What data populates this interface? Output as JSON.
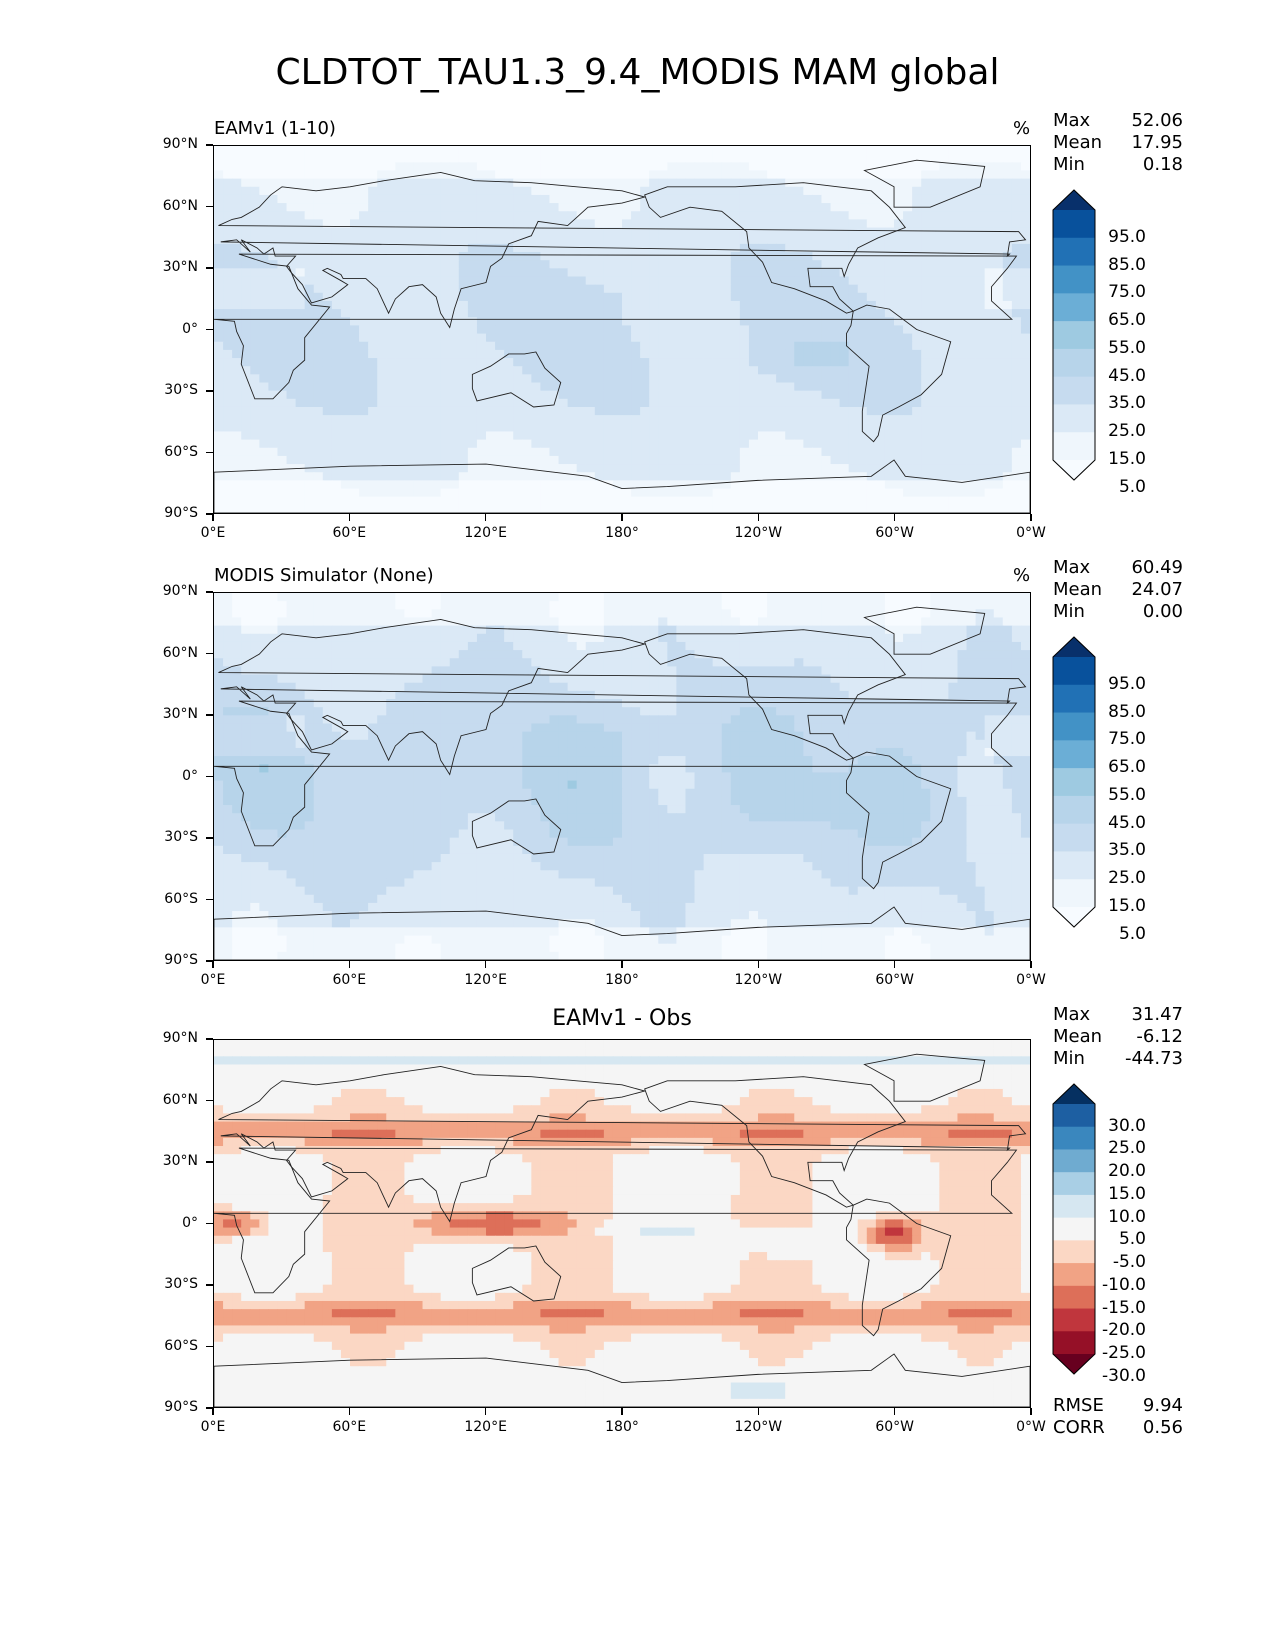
{
  "title": "CLDTOT_TAU1.3_9.4_MODIS MAM global",
  "axes": {
    "lat_ticks": [
      "90°N",
      "60°N",
      "30°N",
      "0°",
      "30°S",
      "60°S",
      "90°S"
    ],
    "lon_ticks": [
      "0°E",
      "60°E",
      "120°E",
      "180°",
      "120°W",
      "60°W",
      "0°W"
    ]
  },
  "panels": [
    {
      "label": "EAMv1 (1-10)",
      "label_align": "left",
      "units": "%",
      "stats": [
        {
          "name": "Max",
          "value": "52.06"
        },
        {
          "name": "Mean",
          "value": "17.95"
        },
        {
          "name": "Min",
          "value": "0.18"
        }
      ],
      "colorbar": {
        "labels": [
          "95.0",
          "85.0",
          "75.0",
          "65.0",
          "55.0",
          "45.0",
          "35.0",
          "25.0",
          "15.0",
          "5.0"
        ],
        "colors": [
          "#08306b",
          "#08519c",
          "#2171b5",
          "#4292c6",
          "#6baed6",
          "#9ecae1",
          "#b7d4ea",
          "#c6dbef",
          "#dbe9f6",
          "#eff6fc",
          "#f7fbff"
        ]
      },
      "palette": "blues"
    },
    {
      "label": "MODIS Simulator (None)",
      "label_align": "left",
      "units": "%",
      "stats": [
        {
          "name": "Max",
          "value": "60.49"
        },
        {
          "name": "Mean",
          "value": "24.07"
        },
        {
          "name": "Min",
          "value": "0.00"
        }
      ],
      "colorbar": {
        "labels": [
          "95.0",
          "85.0",
          "75.0",
          "65.0",
          "55.0",
          "45.0",
          "35.0",
          "25.0",
          "15.0",
          "5.0"
        ],
        "colors": [
          "#08306b",
          "#08519c",
          "#2171b5",
          "#4292c6",
          "#6baed6",
          "#9ecae1",
          "#b7d4ea",
          "#c6dbef",
          "#dbe9f6",
          "#eff6fc",
          "#f7fbff"
        ]
      },
      "palette": "blues"
    },
    {
      "label": "EAMv1 - Obs",
      "label_align": "center",
      "units": "",
      "stats": [
        {
          "name": "Max",
          "value": "31.47"
        },
        {
          "name": "Mean",
          "value": "-6.12"
        },
        {
          "name": "Min",
          "value": "-44.73"
        }
      ],
      "colorbar": {
        "labels": [
          "30.0",
          "25.0",
          "20.0",
          "15.0",
          "10.0",
          "5.0",
          "-5.0",
          "-10.0",
          "-15.0",
          "-20.0",
          "-25.0",
          "-30.0"
        ],
        "colors": [
          "#053061",
          "#1d5fa2",
          "#3a87be",
          "#6fabd0",
          "#a9cfe5",
          "#d6e7f1",
          "#f5f5f5",
          "#fbd7c4",
          "#f1a385",
          "#dd6f59",
          "#c0363d",
          "#951027",
          "#67001f"
        ]
      },
      "diag": [
        {
          "name": "RMSE",
          "value": "9.94"
        },
        {
          "name": "CORR",
          "value": "0.56"
        }
      ],
      "palette": "diff"
    }
  ],
  "chart_data": [
    {
      "type": "heatmap",
      "title": "EAMv1 (1-10)",
      "ylabel": "",
      "xlabel": "",
      "x_range": [
        0,
        360
      ],
      "y_range": [
        -90,
        90
      ],
      "units": "%",
      "max": 52.06,
      "mean": 17.95,
      "min": 0.18,
      "levels": [
        5,
        15,
        25,
        35,
        45,
        55,
        65,
        75,
        85,
        95
      ]
    },
    {
      "type": "heatmap",
      "title": "MODIS Simulator (None)",
      "x_range": [
        0,
        360
      ],
      "y_range": [
        -90,
        90
      ],
      "units": "%",
      "max": 60.49,
      "mean": 24.07,
      "min": 0.0,
      "levels": [
        5,
        15,
        25,
        35,
        45,
        55,
        65,
        75,
        85,
        95
      ]
    },
    {
      "type": "heatmap",
      "title": "EAMv1 - Obs",
      "x_range": [
        0,
        360
      ],
      "y_range": [
        -90,
        90
      ],
      "max": 31.47,
      "mean": -6.12,
      "min": -44.73,
      "rmse": 9.94,
      "corr": 0.56,
      "levels": [
        -30,
        -25,
        -20,
        -15,
        -10,
        -5,
        5,
        10,
        15,
        20,
        25,
        30
      ]
    }
  ]
}
